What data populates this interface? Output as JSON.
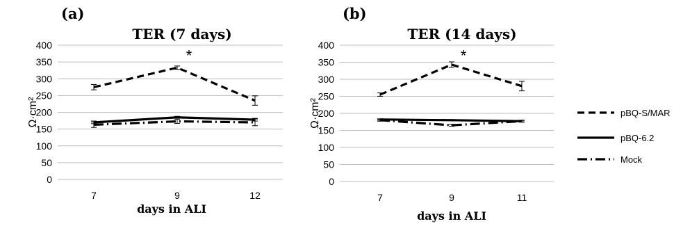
{
  "legend": [
    {
      "label": "pBQ-S/MAR",
      "dash": "10,6"
    },
    {
      "label": "pBQ-6.2",
      "dash": ""
    },
    {
      "label": "Mock",
      "dash": "14,5,2,5"
    }
  ],
  "chart_data": [
    {
      "type": "line",
      "panel": "(a)",
      "title": "TER (7 days)",
      "xlabel": "days in ALI",
      "ylabel": "Ω·cm²",
      "categories": [
        "7",
        "9",
        "12"
      ],
      "ylim": [
        0,
        400
      ],
      "yticks": [
        0,
        50,
        100,
        150,
        200,
        250,
        300,
        350,
        400
      ],
      "grid": true,
      "annotation": {
        "text": "*",
        "category_index": 1,
        "y": 370
      },
      "series": [
        {
          "name": "pBQ-S/MAR",
          "values": [
            275,
            333,
            235
          ],
          "errors": [
            8,
            5,
            14
          ]
        },
        {
          "name": "pBQ-6.2",
          "values": [
            170,
            185,
            178
          ],
          "errors": [
            4,
            3,
            4
          ]
        },
        {
          "name": "Mock",
          "values": [
            163,
            173,
            170
          ],
          "errors": [
            8,
            6,
            10
          ]
        }
      ]
    },
    {
      "type": "line",
      "panel": "(b)",
      "title": "TER (14 days)",
      "xlabel": "days in ALI",
      "ylabel": "Ω·cm²",
      "categories": [
        "7",
        "9",
        "11"
      ],
      "ylim": [
        0,
        400
      ],
      "yticks": [
        0,
        50,
        100,
        150,
        200,
        250,
        300,
        350,
        400
      ],
      "grid": true,
      "annotation": {
        "text": "*",
        "category_index": 1,
        "y": 370
      },
      "series": [
        {
          "name": "pBQ-S/MAR",
          "values": [
            255,
            343,
            280
          ],
          "errors": [
            5,
            8,
            14
          ]
        },
        {
          "name": "pBQ-6.2",
          "values": [
            182,
            180,
            177
          ],
          "errors": [
            2,
            2,
            2
          ]
        },
        {
          "name": "Mock",
          "values": [
            180,
            165,
            177
          ],
          "errors": [
            3,
            3,
            3
          ]
        }
      ]
    }
  ]
}
